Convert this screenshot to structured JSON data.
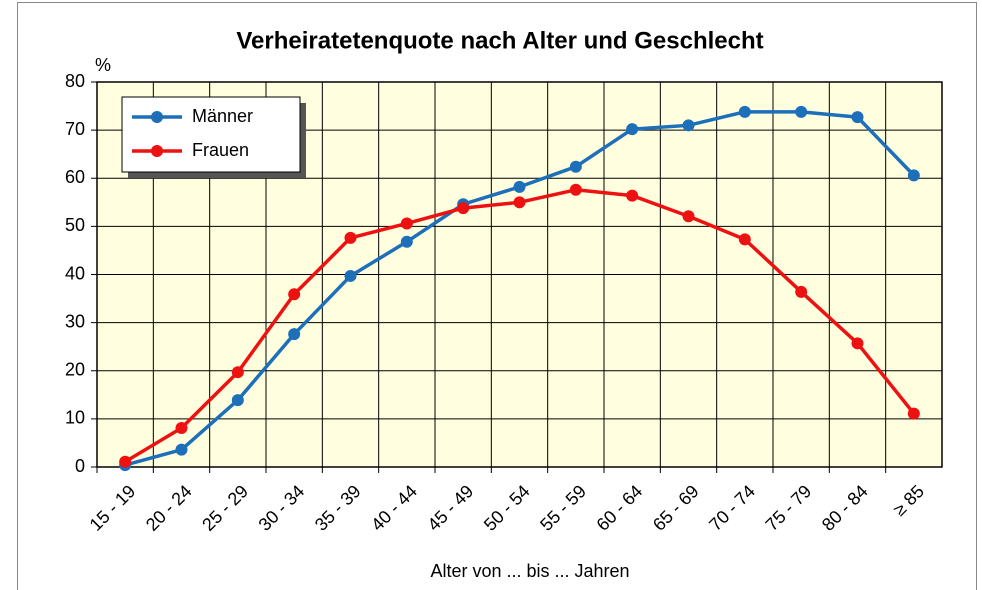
{
  "chart_data": {
    "type": "line",
    "title": "Verheiratetenquote nach Alter und Geschlecht",
    "y_unit": "%",
    "x_label": "Alter von ... bis ... Jahren",
    "categories": [
      "15 - 19",
      "20 - 24",
      "25 - 29",
      "30 - 34",
      "35 - 39",
      "40 - 44",
      "45 - 49",
      "50 - 54",
      "55 - 59",
      "60 - 64",
      "65 - 69",
      "70 - 74",
      "75 - 79",
      "80 - 84",
      "≥ 85"
    ],
    "series": [
      {
        "name": "Männer",
        "color": "#1c6fb8",
        "values": [
          0.4,
          3.6,
          13.9,
          27.6,
          39.7,
          46.8,
          54.6,
          58.2,
          62.4,
          70.2,
          71.0,
          73.8,
          73.8,
          72.7,
          60.6
        ]
      },
      {
        "name": "Frauen",
        "color": "#ee1111",
        "values": [
          1.1,
          8.1,
          19.7,
          35.9,
          47.6,
          50.6,
          53.8,
          55.0,
          57.6,
          56.4,
          52.1,
          47.3,
          36.4,
          25.7,
          11.1
        ]
      }
    ],
    "ylim": [
      0,
      80
    ],
    "yticks": [
      0,
      10,
      20,
      30,
      40,
      50,
      60,
      70,
      80
    ],
    "grid": true,
    "legend": "upper left"
  }
}
